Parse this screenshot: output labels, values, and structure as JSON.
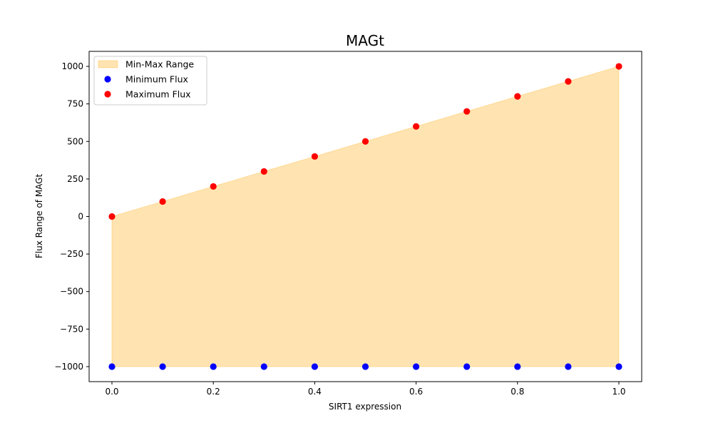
{
  "chart_data": {
    "type": "scatter",
    "title": "MAGt",
    "xlabel": "SIRT1 expression",
    "ylabel": "Flux Range of MAGt",
    "xlim": [
      -0.045,
      1.045
    ],
    "ylim": [
      -1100,
      1100
    ],
    "x_ticks": [
      0.0,
      0.2,
      0.4,
      0.6,
      0.8,
      1.0
    ],
    "x_tick_labels": [
      "0.0",
      "0.2",
      "0.4",
      "0.6",
      "0.8",
      "1.0"
    ],
    "y_ticks": [
      1000,
      750,
      500,
      250,
      0,
      -250,
      -500,
      -750,
      -1000
    ],
    "y_tick_labels": [
      "1000",
      "750",
      "500",
      "250",
      "0",
      "−250",
      "−500",
      "−750",
      "−1000"
    ],
    "x": [
      0.0,
      0.1,
      0.2,
      0.3,
      0.4,
      0.5,
      0.6,
      0.7,
      0.8,
      0.9,
      1.0
    ],
    "series": [
      {
        "name": "Min-Max Range",
        "kind": "fill_between",
        "color": "#ffa500",
        "alpha": 0.3
      },
      {
        "name": "Minimum Flux",
        "kind": "scatter",
        "color": "#0000ff",
        "values": [
          -1000,
          -1000,
          -1000,
          -1000,
          -1000,
          -1000,
          -1000,
          -1000,
          -1000,
          -1000,
          -1000
        ]
      },
      {
        "name": "Maximum Flux",
        "kind": "scatter",
        "color": "#ff0000",
        "values": [
          0,
          100,
          200,
          300,
          400,
          500,
          600,
          700,
          800,
          900,
          1000
        ]
      }
    ],
    "legend_position": "top-left",
    "grid": false
  }
}
